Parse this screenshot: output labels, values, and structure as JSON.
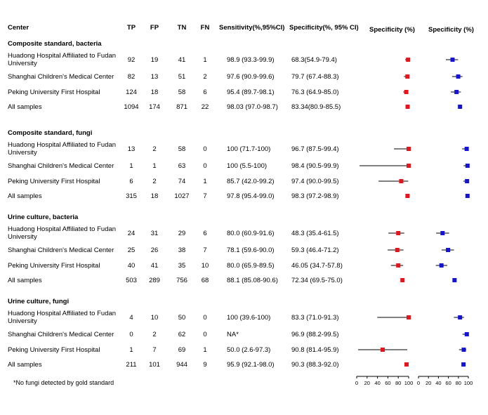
{
  "headers": {
    "center": "Center",
    "tp": "TP",
    "fp": "FP",
    "tn": "TN",
    "fn": "FN",
    "sensitivity": "Sensitivity(%,95%CI)",
    "specificity": "Specificity(%, 95% CI)",
    "plot1": "Specificity (%)",
    "plot2": "Specificity (%)"
  },
  "footnote": "*No fungi detected by gold standard",
  "axis_ticks": [
    "0",
    "20",
    "40",
    "60",
    "80",
    "100"
  ],
  "colors": {
    "sensitivity_marker": "#e8141c",
    "specificity_marker": "#1414d2"
  },
  "chart_data": {
    "type": "forest",
    "axis": {
      "min": 0,
      "max": 100
    },
    "groups": [
      {
        "title": "Composite standard, bacteria",
        "rows": [
          {
            "center": "Huadong Hospital Affiliated to Fudan University",
            "tp": "92",
            "fp": "19",
            "tn": "41",
            "fn": "1",
            "sens_text": "98.9 (93.3-99.9)",
            "spec_text": "68.3(54.9-79.4)",
            "sens": [
              98.9,
              93.3,
              99.9
            ],
            "spec": [
              68.3,
              54.9,
              79.4
            ]
          },
          {
            "center": "Shanghai Children's Medical Center",
            "tp": "82",
            "fp": "13",
            "tn": "51",
            "fn": "2",
            "sens_text": "97.6 (90.9-99.6)",
            "spec_text": "79.7 (67.4-88.3)",
            "sens": [
              97.6,
              90.9,
              99.6
            ],
            "spec": [
              79.7,
              67.4,
              88.3
            ]
          },
          {
            "center": "Peking University First Hospital",
            "tp": "124",
            "fp": "18",
            "tn": "58",
            "fn": "6",
            "sens_text": "95.4 (89.7-98.1)",
            "spec_text": "76.3 (64.9-85.0)",
            "sens": [
              95.4,
              89.7,
              98.1
            ],
            "spec": [
              76.3,
              64.9,
              85.0
            ]
          },
          {
            "center": "All samples",
            "tp": "1094",
            "fp": "174",
            "tn": "871",
            "fn": "22",
            "sens_text": "98.03 (97.0-98.7)",
            "spec_text": "83.34(80.9-85.5)",
            "sens": [
              98.03,
              97.0,
              98.7
            ],
            "spec": [
              83.34,
              80.9,
              85.5
            ]
          }
        ]
      },
      {
        "title": "Composite standard, fungi",
        "rows": [
          {
            "center": "Huadong Hospital Affiliated to Fudan University",
            "tp": "13",
            "fp": "2",
            "tn": "58",
            "fn": "0",
            "sens_text": "100 (71.7-100)",
            "spec_text": "96.7 (87.5-99.4)",
            "sens": [
              100,
              71.7,
              100
            ],
            "spec": [
              96.7,
              87.5,
              99.4
            ]
          },
          {
            "center": "Shanghai Children's Medical Center",
            "tp": "1",
            "fp": "1",
            "tn": "63",
            "fn": "0",
            "sens_text": "100 (5.5-100)",
            "spec_text": "98.4 (90.5-99.9)",
            "sens": [
              100,
              5.5,
              100
            ],
            "spec": [
              98.4,
              90.5,
              99.9
            ]
          },
          {
            "center": "Peking University First Hospital",
            "tp": "6",
            "fp": "2",
            "tn": "74",
            "fn": "1",
            "sens_text": "85.7 (42.0-99.2)",
            "spec_text": "97.4 (90.0-99.5)",
            "sens": [
              85.7,
              42.0,
              99.2
            ],
            "spec": [
              97.4,
              90.0,
              99.5
            ]
          },
          {
            "center": "All samples",
            "tp": "315",
            "fp": "18",
            "tn": "1027",
            "fn": "7",
            "sens_text": "97.8 (95.4-99.0)",
            "spec_text": "98.3 (97.2-98.9)",
            "sens": [
              97.8,
              95.4,
              99.0
            ],
            "spec": [
              98.3,
              97.2,
              98.9
            ]
          }
        ]
      },
      {
        "title": "Urine culture, bacteria",
        "rows": [
          {
            "center": "Huadong Hospital Affiliated to Fudan University",
            "tp": "24",
            "fp": "31",
            "tn": "29",
            "fn": "6",
            "sens_text": "80.0 (60.9-91.6)",
            "spec_text": "48.3 (35.4-61.5)",
            "sens": [
              80.0,
              60.9,
              91.6
            ],
            "spec": [
              48.3,
              35.4,
              61.5
            ]
          },
          {
            "center": "Shanghai Children's Medical Center",
            "tp": "25",
            "fp": "26",
            "tn": "38",
            "fn": "7",
            "sens_text": "78.1 (59.6-90.0)",
            "spec_text": "59.3 (46.4-71.2)",
            "sens": [
              78.1,
              59.6,
              90.0
            ],
            "spec": [
              59.3,
              46.4,
              71.2
            ]
          },
          {
            "center": "Peking University First Hospital",
            "tp": "40",
            "fp": "41",
            "tn": "35",
            "fn": "10",
            "sens_text": "80.0 (65.9-89.5)",
            "spec_text": "46.05 (34.7-57.8)",
            "sens": [
              80.0,
              65.9,
              89.5
            ],
            "spec": [
              46.05,
              34.7,
              57.8
            ]
          },
          {
            "center": "All samples",
            "tp": "503",
            "fp": "289",
            "tn": "756",
            "fn": "68",
            "sens_text": "88.1 (85.08-90.6)",
            "spec_text": "72.34 (69.5-75.0)",
            "sens": [
              88.1,
              85.08,
              90.6
            ],
            "spec": [
              72.34,
              69.5,
              75.0
            ]
          }
        ]
      },
      {
        "title": "Urine culture, fungi",
        "rows": [
          {
            "center": "Huadong Hospital Affiliated to Fudan University",
            "tp": "4",
            "fp": "10",
            "tn": "50",
            "fn": "0",
            "sens_text": "100 (39.6-100)",
            "spec_text": "83.3 (71.0-91.3)",
            "sens": [
              100,
              39.6,
              100
            ],
            "spec": [
              83.3,
              71.0,
              91.3
            ]
          },
          {
            "center": "Shanghai Children's Medical Center",
            "tp": "0",
            "fp": "2",
            "tn": "62",
            "fn": "0",
            "sens_text": "NA*",
            "spec_text": "96.9 (88.2-99.5)",
            "sens": null,
            "spec": [
              96.9,
              88.2,
              99.5
            ]
          },
          {
            "center": "Peking University First Hospital",
            "tp": "1",
            "fp": "7",
            "tn": "69",
            "fn": "1",
            "sens_text": "50.0 (2.6-97.3)",
            "spec_text": "90.8 (81.4-95.9)",
            "sens": [
              50.0,
              2.6,
              97.3
            ],
            "spec": [
              90.8,
              81.4,
              95.9
            ]
          },
          {
            "center": "All samples",
            "tp": "211",
            "fp": "101",
            "tn": "944",
            "fn": "9",
            "sens_text": "95.9 (92.1-98.0)",
            "spec_text": "90.3 (88.3-92.0)",
            "sens": [
              95.9,
              92.1,
              98.0
            ],
            "spec": [
              90.3,
              88.3,
              92.0
            ]
          }
        ]
      }
    ]
  }
}
